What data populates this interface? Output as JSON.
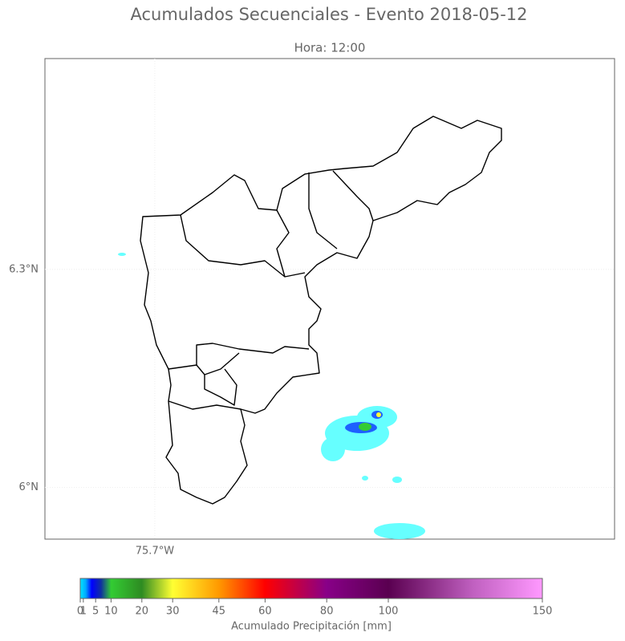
{
  "title": "Acumulados Secuenciales - Evento 2018-05-12",
  "subtitle": "Hora: 12:00",
  "map": {
    "xlim": [
      -75.851,
      -75.068
    ],
    "ylim": [
      5.929,
      6.59
    ],
    "xticks": [
      {
        "value": -75.7,
        "label": "75.7°W"
      }
    ],
    "yticks": [
      {
        "value": 6.3,
        "label": "6.3°N"
      },
      {
        "value": 6,
        "label": "6°N"
      }
    ]
  },
  "colorbar": {
    "label": "Acumulado Precipitación [mm]",
    "lim": [
      0,
      150
    ],
    "ticks": [
      0,
      1,
      5,
      10,
      20,
      30,
      45,
      60,
      80,
      100,
      150
    ]
  }
}
